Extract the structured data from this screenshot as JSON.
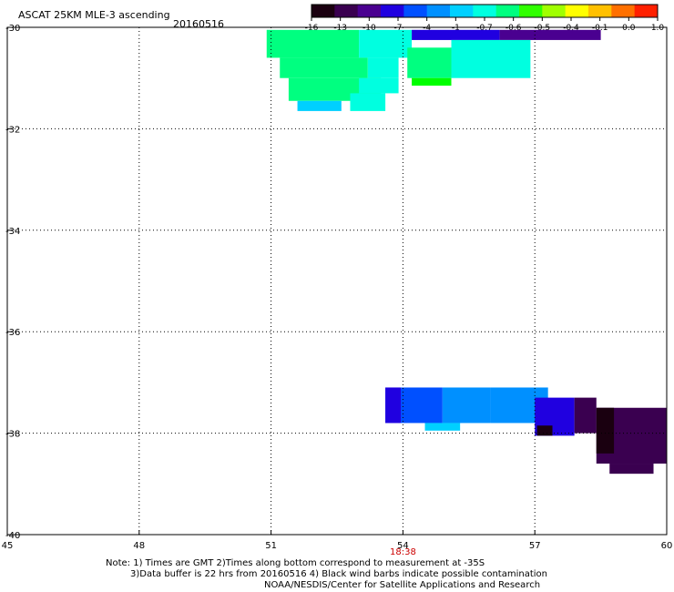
{
  "chart_data": {
    "type": "heatmap",
    "title": "ASCAT 25KM MLE-3 ascending",
    "date": "20160516",
    "xlim": [
      45,
      60
    ],
    "ylim": [
      -40,
      -30
    ],
    "x_ticks": [
      "45",
      "48",
      "51",
      "54",
      "57",
      "60"
    ],
    "y_ticks": [
      "-30",
      "-32",
      "-34",
      "-36",
      "-38",
      "-40"
    ],
    "grid": true,
    "time_labels": [
      {
        "x": 54,
        "label": "18:38",
        "color": "#cc0000"
      }
    ],
    "colorbar": {
      "labels": [
        "-16",
        "-13",
        "-10",
        "-7",
        "-4",
        "-1",
        "-0.7",
        "-0.6",
        "-0.5",
        "-0.4",
        "-0.1",
        "0.0",
        "1.0"
      ],
      "colors": [
        "#1a0010",
        "#3a0050",
        "#4a0090",
        "#2000e0",
        "#0050ff",
        "#0090ff",
        "#00d0ff",
        "#00ffe0",
        "#00ff80",
        "#30ff00",
        "#a0ff00",
        "#ffff00",
        "#ffc000",
        "#ff7000",
        "#ff2000"
      ]
    },
    "cells": [
      {
        "x0": 50.9,
        "x1": 53.0,
        "y0": -30.05,
        "y1": -30.6,
        "color": "#00ff80"
      },
      {
        "x0": 53.0,
        "x1": 54.2,
        "y0": -30.05,
        "y1": -30.6,
        "color": "#00ffe0"
      },
      {
        "x0": 54.2,
        "x1": 56.2,
        "y0": -30.05,
        "y1": -30.25,
        "color": "#2000e0"
      },
      {
        "x0": 56.2,
        "x1": 58.5,
        "y0": -30.05,
        "y1": -30.25,
        "color": "#4a0090"
      },
      {
        "x0": 51.2,
        "x1": 53.2,
        "y0": -30.6,
        "y1": -31.0,
        "color": "#00ff80"
      },
      {
        "x0": 53.2,
        "x1": 53.9,
        "y0": -30.6,
        "y1": -31.0,
        "color": "#00ffe0"
      },
      {
        "x0": 54.1,
        "x1": 55.1,
        "y0": -30.4,
        "y1": -31.0,
        "color": "#00ff80"
      },
      {
        "x0": 55.1,
        "x1": 56.9,
        "y0": -30.25,
        "y1": -31.0,
        "color": "#00ffe0"
      },
      {
        "x0": 54.2,
        "x1": 55.1,
        "y0": -31.0,
        "y1": -31.15,
        "color": "#00ff00"
      },
      {
        "x0": 51.4,
        "x1": 53.5,
        "y0": -31.0,
        "y1": -31.45,
        "color": "#00ff80"
      },
      {
        "x0": 53.0,
        "x1": 53.9,
        "y0": -31.0,
        "y1": -31.3,
        "color": "#00ffe0"
      },
      {
        "x0": 51.6,
        "x1": 52.6,
        "y0": -31.45,
        "y1": -31.65,
        "color": "#00d0ff"
      },
      {
        "x0": 52.8,
        "x1": 53.6,
        "y0": -31.3,
        "y1": -31.65,
        "color": "#00ffe0"
      },
      {
        "x0": 53.6,
        "x1": 54.9,
        "y0": -37.1,
        "y1": -37.8,
        "color": "#0050ff"
      },
      {
        "x0": 54.9,
        "x1": 56.0,
        "y0": -37.1,
        "y1": -37.8,
        "color": "#0090ff"
      },
      {
        "x0": 56.0,
        "x1": 57.3,
        "y0": -37.1,
        "y1": -37.8,
        "color": "#0090ff"
      },
      {
        "x0": 53.6,
        "x1": 53.95,
        "y0": -37.1,
        "y1": -37.8,
        "color": "#2000e0"
      },
      {
        "x0": 54.5,
        "x1": 55.3,
        "y0": -37.8,
        "y1": -37.95,
        "color": "#00d0ff"
      },
      {
        "x0": 57.0,
        "x1": 57.9,
        "y0": -37.3,
        "y1": -38.05,
        "color": "#2000e0"
      },
      {
        "x0": 57.9,
        "x1": 58.4,
        "y0": -37.3,
        "y1": -38.0,
        "color": "#3a0050"
      },
      {
        "x0": 57.05,
        "x1": 57.4,
        "y0": -37.85,
        "y1": -38.05,
        "color": "#1a0010"
      },
      {
        "x0": 58.4,
        "x1": 60.0,
        "y0": -37.5,
        "y1": -38.6,
        "color": "#3a0050"
      },
      {
        "x0": 58.7,
        "x1": 59.7,
        "y0": -38.6,
        "y1": -38.8,
        "color": "#3a0050"
      },
      {
        "x0": 58.4,
        "x1": 58.8,
        "y0": -37.5,
        "y1": -38.4,
        "color": "#1a0010"
      }
    ]
  },
  "notes": {
    "line1": "Note: 1) Times are GMT 2)Times along bottom correspond to measurement at -35S",
    "line2": "3)Data buffer is 22 hrs from 20160516 4) Black wind barbs indicate possible contamination",
    "line3": "NOAA/NESDIS/Center for Satellite Applications and Research"
  }
}
